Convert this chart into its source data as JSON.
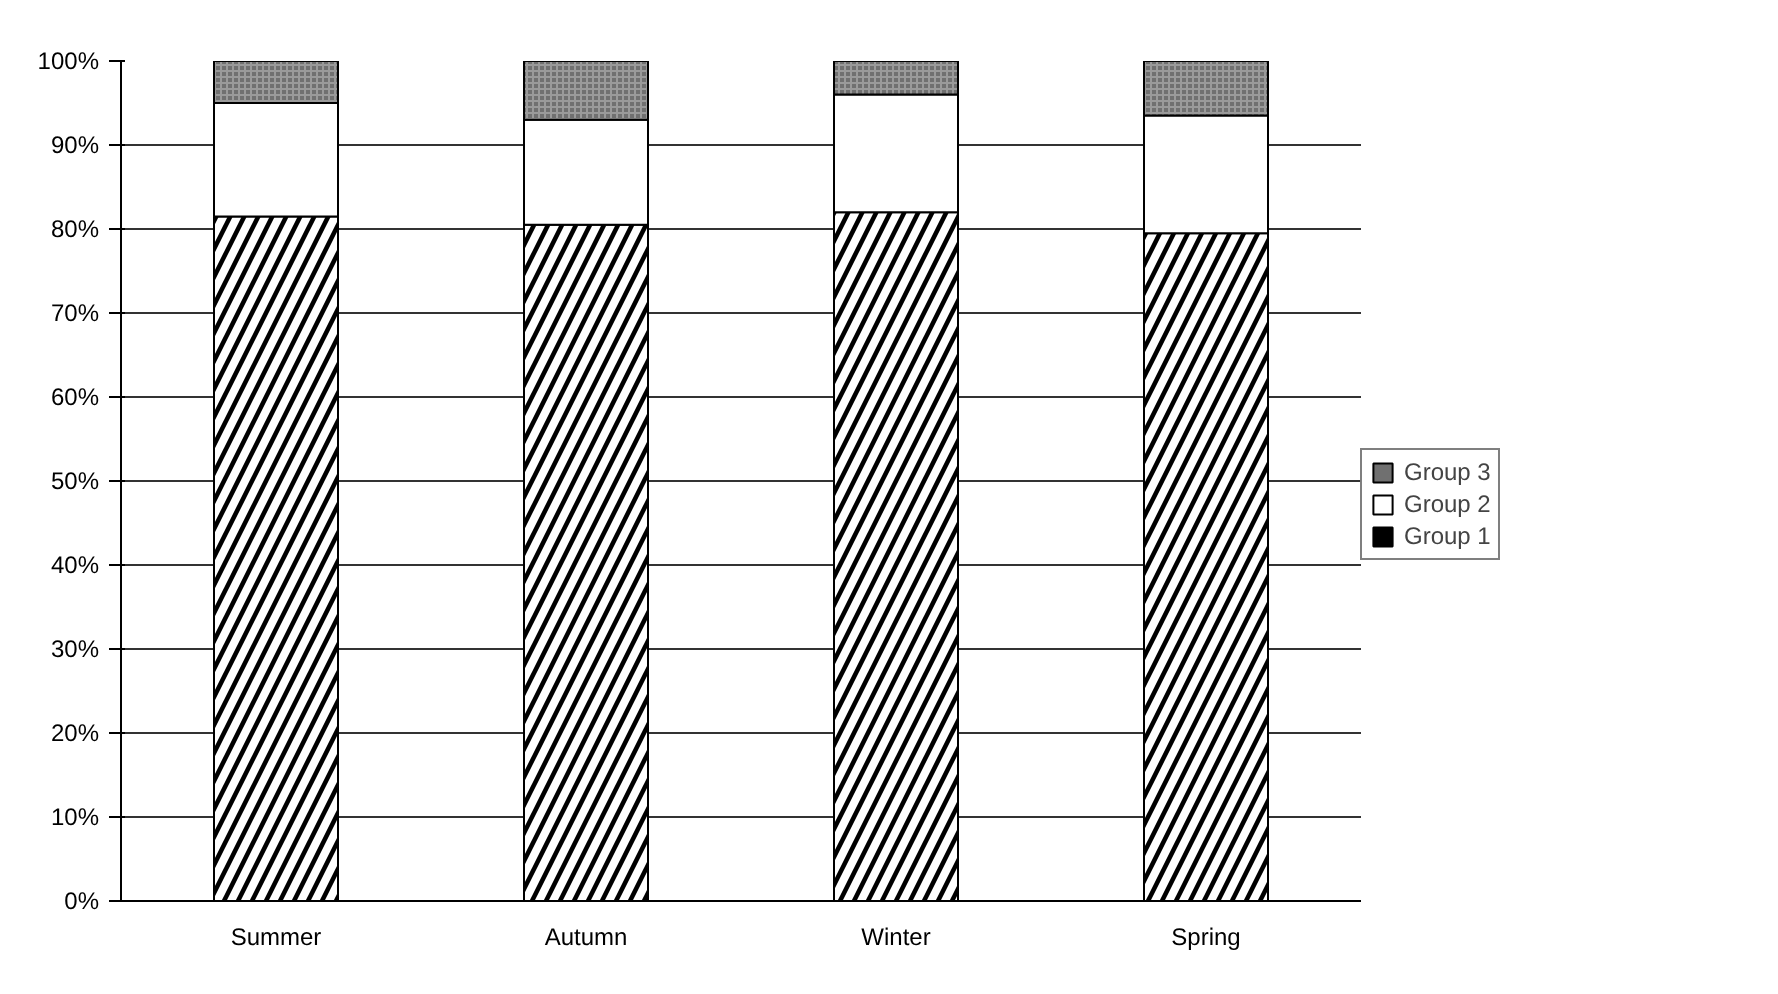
{
  "chart_data": {
    "type": "bar",
    "stacked": true,
    "categories": [
      "Summer",
      "Autumn",
      "Winter",
      "Spring"
    ],
    "series": [
      {
        "name": "Group 1",
        "color": "#000000",
        "values": [
          81.5,
          80.5,
          82,
          79.5
        ]
      },
      {
        "name": "Group 2",
        "color": "#ffffff",
        "values": [
          13.5,
          12.5,
          14,
          14
        ]
      },
      {
        "name": "Group 3",
        "color": "#707070",
        "values": [
          5,
          7,
          4,
          6.5
        ]
      }
    ],
    "ylim": [
      0,
      100
    ],
    "yticks": [
      {
        "value": 0,
        "label": "0%"
      },
      {
        "value": 10,
        "label": "10%"
      },
      {
        "value": 20,
        "label": "20%"
      },
      {
        "value": 30,
        "label": "30%"
      },
      {
        "value": 40,
        "label": "40%"
      },
      {
        "value": 50,
        "label": "50%"
      },
      {
        "value": 60,
        "label": "60%"
      },
      {
        "value": 70,
        "label": "70%"
      },
      {
        "value": 80,
        "label": "80%"
      },
      {
        "value": 90,
        "label": "90%"
      },
      {
        "value": 100,
        "label": "100%"
      }
    ],
    "grid": "y",
    "legend": "right"
  }
}
